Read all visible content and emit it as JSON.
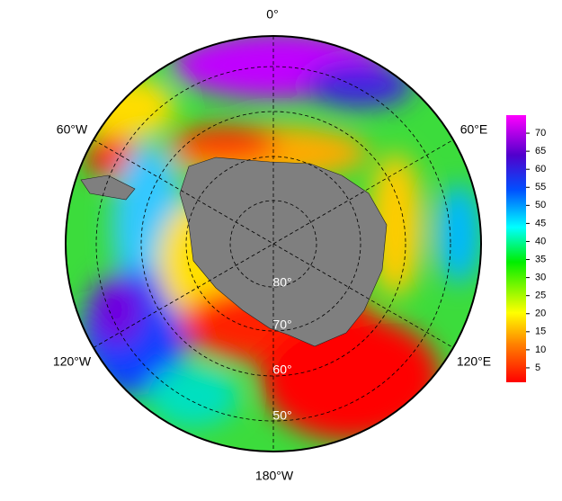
{
  "map": {
    "longitude_labels": [
      "0°",
      "60°E",
      "120°E",
      "180°W",
      "120°W",
      "60°W"
    ],
    "latitude_labels": [
      "80°",
      "70°",
      "60°",
      "50°"
    ],
    "colorbar": {
      "lim": [
        1,
        75
      ],
      "ticks": [
        5,
        10,
        15,
        20,
        25,
        30,
        35,
        40,
        45,
        50,
        55,
        60,
        65,
        70
      ]
    }
  }
}
